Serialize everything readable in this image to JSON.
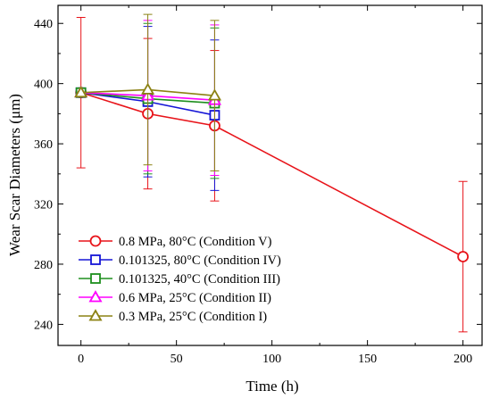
{
  "chart_data": {
    "type": "line",
    "title": "",
    "xlabel": "Time (h)",
    "ylabel": "Wear Scar Diameters (μm)",
    "xlim": [
      -12,
      210
    ],
    "ylim": [
      226,
      452
    ],
    "xticks": [
      0,
      50,
      100,
      150,
      200
    ],
    "yticks": [
      240,
      280,
      320,
      360,
      400,
      440
    ],
    "legend_position": "lower-left",
    "series": [
      {
        "name": "0.8 MPa, 80°C (Condition V)",
        "color": "#e8141a",
        "marker": "circle",
        "x": [
          0,
          35,
          70,
          200
        ],
        "y": [
          394,
          380,
          372,
          285
        ],
        "err": [
          50,
          50,
          50,
          50
        ]
      },
      {
        "name": "0.101325, 80°C (Condition IV)",
        "color": "#1515d6",
        "marker": "square",
        "x": [
          0,
          35,
          70
        ],
        "y": [
          394,
          388,
          379
        ],
        "err": [
          0,
          50,
          50
        ]
      },
      {
        "name": "0.101325, 40°C (Condition III)",
        "color": "#1e8f1e",
        "marker": "square",
        "x": [
          0,
          35,
          70
        ],
        "y": [
          394,
          390,
          387
        ],
        "err": [
          0,
          50,
          50
        ]
      },
      {
        "name": "0.6 MPa, 25°C (Condition II)",
        "color": "#ff00ff",
        "marker": "triangle",
        "x": [
          0,
          35,
          70
        ],
        "y": [
          394,
          392,
          389
        ],
        "err": [
          0,
          50,
          50
        ]
      },
      {
        "name": "0.3 MPa, 25°C (Condition I)",
        "color": "#8c8214",
        "marker": "triangle",
        "x": [
          0,
          35,
          70
        ],
        "y": [
          394,
          396,
          392
        ],
        "err": [
          0,
          50,
          50
        ]
      }
    ]
  }
}
